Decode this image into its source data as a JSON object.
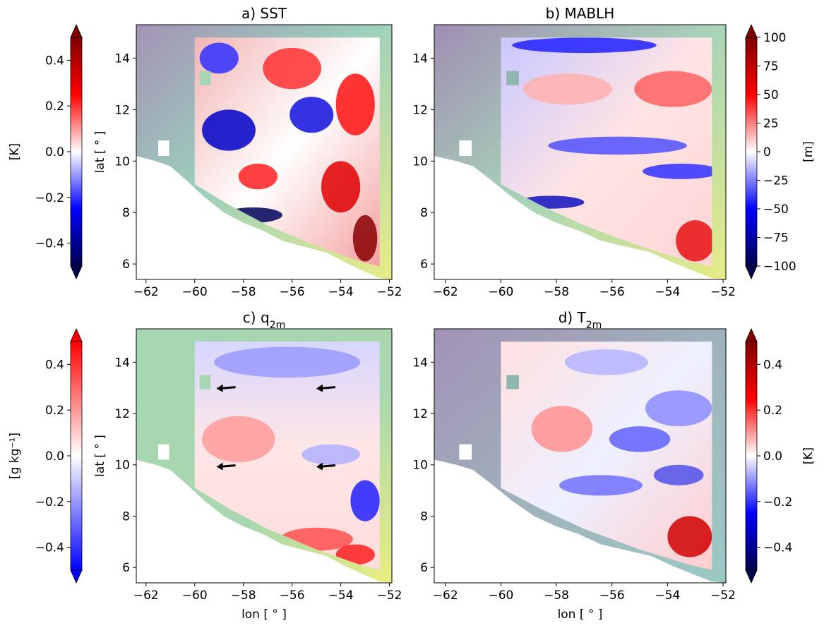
{
  "figure": {
    "panels": [
      {
        "title": "a)  SST",
        "ylabel": "lat [ ° ]",
        "xlabel": "",
        "colorbar": {
          "label": "[K]",
          "ticks": [
            "0.4",
            "0.2",
            "0.0",
            "−0.2",
            "−0.4"
          ],
          "range": [
            -0.5,
            0.5
          ],
          "cmap": "seismic",
          "side": "left",
          "extend": "both"
        }
      },
      {
        "title": "b)  MABLH",
        "ylabel": "",
        "xlabel": "",
        "colorbar": {
          "label": "[m]",
          "ticks": [
            "100",
            "75",
            "50",
            "25",
            "0",
            "−25",
            "−50",
            "−75",
            "−100"
          ],
          "range": [
            -100,
            100
          ],
          "cmap": "seismic",
          "side": "right",
          "extend": "both"
        }
      },
      {
        "title": "c)  q",
        "title_sub": "2m",
        "ylabel": "lat [ ° ]",
        "xlabel": "lon [ ° ]",
        "colorbar": {
          "label": "[g kg⁻¹]",
          "ticks": [
            "0.4",
            "0.2",
            "0.0",
            "−0.2",
            "−0.4"
          ],
          "range": [
            -0.5,
            0.5
          ],
          "cmap": "bwr",
          "side": "left",
          "extend": "both"
        }
      },
      {
        "title": "d)  T",
        "title_sub": "2m",
        "ylabel": "",
        "xlabel": "lon [ ° ]",
        "colorbar": {
          "label": "[K]",
          "ticks": [
            "0.4",
            "0.2",
            "0.0",
            "−0.2",
            "−0.4"
          ],
          "range": [
            -0.5,
            0.5
          ],
          "cmap": "seismic",
          "side": "right",
          "extend": "both"
        }
      }
    ],
    "xticks": [
      "−62",
      "−60",
      "−58",
      "−56",
      "−54",
      "−52"
    ],
    "yticks": [
      "14",
      "12",
      "10",
      "8",
      "6"
    ]
  },
  "chart_data": {
    "type": "heatmap",
    "xlim": [
      -62.4,
      -51.9
    ],
    "ylim": [
      5.4,
      15.3
    ],
    "xtick_values": [
      -62,
      -60,
      -58,
      -56,
      -54,
      -52
    ],
    "ytick_values": [
      14,
      12,
      10,
      8,
      6
    ],
    "colors": {
      "seismic_low": "#00004c",
      "seismic_blue": "#0000ff",
      "white": "#ffffff",
      "seismic_red": "#ff0000",
      "seismic_high": "#7f0000",
      "bwr_low": "#0000ff",
      "bwr_high": "#ff0000",
      "land_sea_shade_green": "#9fd8b0",
      "land_sea_shade_purple": "#a593b6"
    },
    "arrows_panel_c": [
      {
        "lon": -58.7,
        "lat": 13.0
      },
      {
        "lon": -54.6,
        "lat": 13.0
      },
      {
        "lon": -58.7,
        "lat": 9.95
      },
      {
        "lon": -54.6,
        "lat": 9.95
      }
    ]
  }
}
